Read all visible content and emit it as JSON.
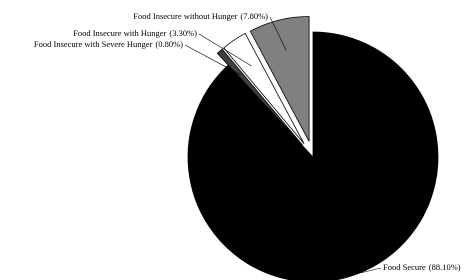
{
  "chart_data": {
    "type": "pie",
    "categories": [
      "Food Secure",
      "Food Insecure with Severe Hunger",
      "Food Insecure with Hunger",
      "Food Insecure without Hunger"
    ],
    "values": [
      88.1,
      0.8,
      3.3,
      7.8
    ],
    "value_labels": [
      "(88.10%)",
      "(0.80%)",
      "(3.30%)",
      "(7.80%)"
    ],
    "colors": [
      "#000000",
      "#404040",
      "#ffffff",
      "#808080"
    ]
  }
}
